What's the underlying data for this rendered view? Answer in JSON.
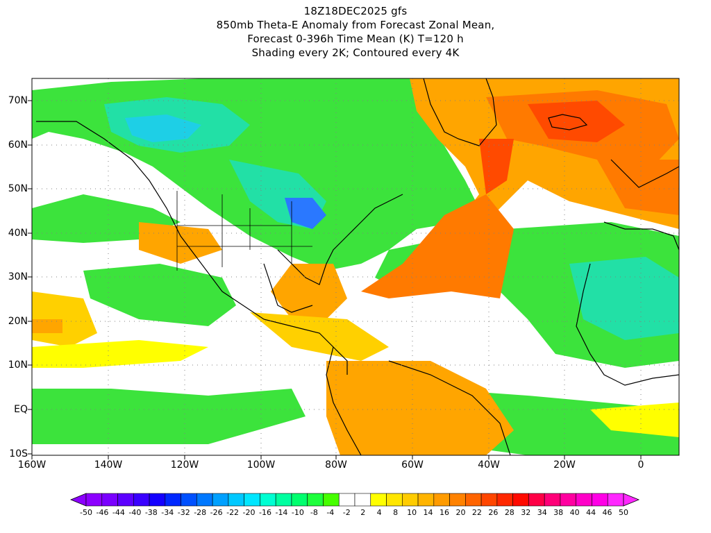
{
  "title": {
    "lines": [
      "18Z18DEC2025 gfs",
      "850mb Theta-E Anomaly from Forecast Zonal Mean,",
      "Forecast 0-396h Time Mean (K) T=120 h",
      "Shading every 2K; Contoured every 4K"
    ]
  },
  "axes": {
    "lat_labels": [
      "70N",
      "60N",
      "50N",
      "40N",
      "30N",
      "20N",
      "10N",
      "EQ",
      "10S"
    ],
    "lon_labels": [
      "160W",
      "140W",
      "120W",
      "100W",
      "80W",
      "60W",
      "40W",
      "20W",
      "0"
    ]
  },
  "colorbar": {
    "labels": [
      "-50",
      "-46",
      "-44",
      "-40",
      "-38",
      "-34",
      "-32",
      "-28",
      "-26",
      "-22",
      "-20",
      "-16",
      "-14",
      "-10",
      "-8",
      "-4",
      "-2",
      "2",
      "4",
      "8",
      "10",
      "14",
      "16",
      "20",
      "22",
      "26",
      "28",
      "32",
      "34",
      "38",
      "40",
      "44",
      "46",
      "50"
    ],
    "colors": [
      "#8c00ff",
      "#7a00ff",
      "#5c00ff",
      "#3a00ff",
      "#1400ff",
      "#0028ff",
      "#0050ff",
      "#0078ff",
      "#00a0ff",
      "#00c8ff",
      "#00e6ff",
      "#00ffd2",
      "#00ffa0",
      "#00ff6e",
      "#1eff3c",
      "#46ff00",
      "#ffffff",
      "#ffffff",
      "#ffff00",
      "#ffe600",
      "#ffcc00",
      "#ffb400",
      "#ff9b00",
      "#ff8200",
      "#ff6400",
      "#ff4600",
      "#ff2800",
      "#ff0a00",
      "#ff0046",
      "#ff0078",
      "#ff00a0",
      "#ff00c8",
      "#ff00e6",
      "#ff28ff"
    ]
  },
  "palette": {
    "green": "#3ce33c",
    "light_green": "#66ee66",
    "cyan_green": "#22e0a6",
    "cyan": "#1ecfe6",
    "blue": "#2a78ff",
    "yellow": "#ffff00",
    "light_orange": "#ffd000",
    "orange": "#ffa500",
    "dark_orange": "#ff7a00",
    "red_orange": "#ff4a00",
    "white": "#ffffff",
    "grid": "#808080",
    "coast": "#000000"
  }
}
